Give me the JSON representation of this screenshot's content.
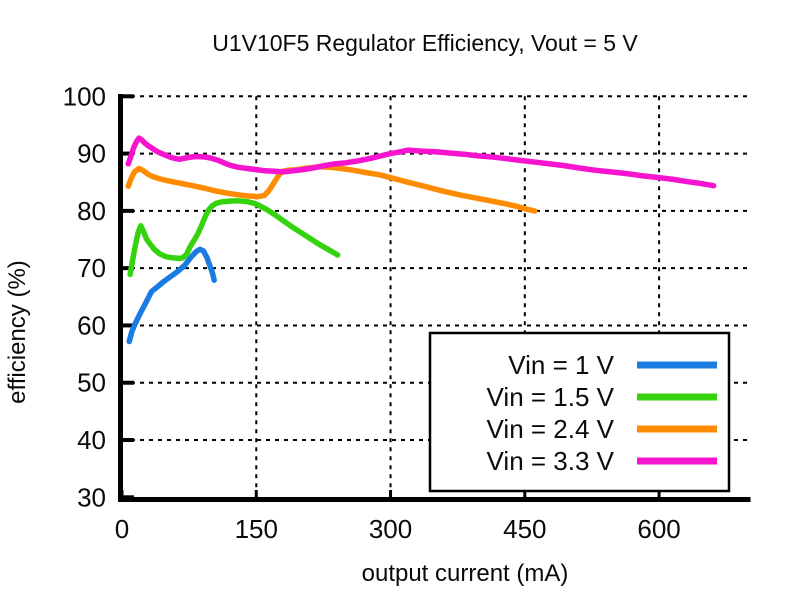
{
  "chart_data": {
    "type": "line",
    "title": "U1V10F5 Regulator Efficiency, Vout = 5 V",
    "xlabel": "output current (mA)",
    "ylabel": "efficiency (%)",
    "xlim": [
      0,
      700
    ],
    "ylim": [
      30,
      100
    ],
    "x_ticks": [
      0,
      150,
      300,
      450,
      600
    ],
    "y_ticks": [
      30,
      40,
      50,
      60,
      70,
      80,
      90,
      100
    ],
    "grid": true,
    "grid_style": "black-dotted",
    "axes_shown": [
      "left",
      "bottom"
    ],
    "legend_position": "inside-bottom-right-box",
    "series": [
      {
        "name": "Vin = 1 V",
        "color": "#1a7ce0",
        "points": [
          [
            8,
            57.2
          ],
          [
            11,
            58.9
          ],
          [
            15,
            60.4
          ],
          [
            20,
            62.0
          ],
          [
            26,
            63.8
          ],
          [
            33,
            65.9
          ],
          [
            40,
            66.8
          ],
          [
            47,
            67.7
          ],
          [
            54,
            68.5
          ],
          [
            62,
            69.4
          ],
          [
            70,
            70.5
          ],
          [
            77,
            71.9
          ],
          [
            83,
            72.9
          ],
          [
            87,
            73.3
          ],
          [
            91,
            73.0
          ],
          [
            95,
            71.8
          ],
          [
            98,
            70.5
          ],
          [
            101,
            69.2
          ],
          [
            103,
            67.9
          ]
        ]
      },
      {
        "name": "Vin = 1.5 V",
        "color": "#35d30e",
        "points": [
          [
            9,
            68.9
          ],
          [
            12,
            71.5
          ],
          [
            15,
            74.0
          ],
          [
            18,
            76.2
          ],
          [
            21,
            77.4
          ],
          [
            24,
            76.4
          ],
          [
            27,
            75.2
          ],
          [
            31,
            74.3
          ],
          [
            36,
            73.3
          ],
          [
            42,
            72.5
          ],
          [
            49,
            72.0
          ],
          [
            56,
            71.8
          ],
          [
            64,
            71.7
          ],
          [
            68,
            71.8
          ],
          [
            72,
            72.4
          ],
          [
            76,
            73.7
          ],
          [
            81,
            75.0
          ],
          [
            85,
            76.1
          ],
          [
            89,
            77.5
          ],
          [
            93,
            79.0
          ],
          [
            97,
            80.2
          ],
          [
            101,
            80.9
          ],
          [
            105,
            81.3
          ],
          [
            112,
            81.6
          ],
          [
            120,
            81.7
          ],
          [
            130,
            81.75
          ],
          [
            140,
            81.6
          ],
          [
            148,
            81.3
          ],
          [
            155,
            80.8
          ],
          [
            162,
            80.2
          ],
          [
            170,
            79.4
          ],
          [
            180,
            78.3
          ],
          [
            190,
            77.2
          ],
          [
            200,
            76.2
          ],
          [
            210,
            75.2
          ],
          [
            221,
            74.1
          ],
          [
            231,
            73.2
          ],
          [
            241,
            72.3
          ]
        ]
      },
      {
        "name": "Vin = 2.4 V",
        "color": "#ff8c00",
        "points": [
          [
            7,
            84.3
          ],
          [
            10,
            85.6
          ],
          [
            14,
            86.8
          ],
          [
            19,
            87.4
          ],
          [
            23,
            87.1
          ],
          [
            28,
            86.5
          ],
          [
            34,
            86.0
          ],
          [
            42,
            85.6
          ],
          [
            50,
            85.3
          ],
          [
            59,
            85.0
          ],
          [
            69,
            84.7
          ],
          [
            79,
            84.4
          ],
          [
            91,
            84.0
          ],
          [
            104,
            83.5
          ],
          [
            117,
            83.1
          ],
          [
            130,
            82.8
          ],
          [
            141,
            82.6
          ],
          [
            152,
            82.5
          ],
          [
            159,
            82.7
          ],
          [
            164,
            83.5
          ],
          [
            169,
            84.7
          ],
          [
            174,
            86.0
          ],
          [
            179,
            86.9
          ],
          [
            186,
            87.1
          ],
          [
            196,
            87.2
          ],
          [
            208,
            87.5
          ],
          [
            220,
            87.7
          ],
          [
            232,
            87.6
          ],
          [
            245,
            87.4
          ],
          [
            258,
            87.1
          ],
          [
            272,
            86.7
          ],
          [
            288,
            86.3
          ],
          [
            305,
            85.6
          ],
          [
            322,
            84.9
          ],
          [
            340,
            84.2
          ],
          [
            360,
            83.4
          ],
          [
            380,
            82.7
          ],
          [
            400,
            82.1
          ],
          [
            420,
            81.5
          ],
          [
            438,
            80.9
          ],
          [
            452,
            80.3
          ],
          [
            461,
            80.0
          ]
        ]
      },
      {
        "name": "Vin = 3.3 V",
        "color": "#f714cf",
        "points": [
          [
            7,
            88.2
          ],
          [
            10,
            89.6
          ],
          [
            13,
            91.0
          ],
          [
            16,
            92.0
          ],
          [
            19,
            92.7
          ],
          [
            22,
            92.4
          ],
          [
            25,
            91.9
          ],
          [
            29,
            91.4
          ],
          [
            34,
            90.9
          ],
          [
            40,
            90.3
          ],
          [
            46,
            89.9
          ],
          [
            52,
            89.5
          ],
          [
            58,
            89.2
          ],
          [
            64,
            89.0
          ],
          [
            70,
            89.2
          ],
          [
            77,
            89.4
          ],
          [
            85,
            89.5
          ],
          [
            93,
            89.4
          ],
          [
            100,
            89.2
          ],
          [
            108,
            88.8
          ],
          [
            115,
            88.3
          ],
          [
            122,
            87.9
          ],
          [
            130,
            87.6
          ],
          [
            140,
            87.4
          ],
          [
            150,
            87.2
          ],
          [
            160,
            87.0
          ],
          [
            170,
            86.9
          ],
          [
            180,
            86.8
          ],
          [
            191,
            87.0
          ],
          [
            202,
            87.2
          ],
          [
            214,
            87.5
          ],
          [
            226,
            87.9
          ],
          [
            238,
            88.2
          ],
          [
            250,
            88.4
          ],
          [
            263,
            88.7
          ],
          [
            276,
            89.1
          ],
          [
            289,
            89.6
          ],
          [
            300,
            90.0
          ],
          [
            310,
            90.3
          ],
          [
            320,
            90.6
          ],
          [
            328,
            90.5
          ],
          [
            338,
            90.4
          ],
          [
            352,
            90.3
          ],
          [
            366,
            90.1
          ],
          [
            382,
            89.9
          ],
          [
            398,
            89.6
          ],
          [
            414,
            89.4
          ],
          [
            430,
            89.1
          ],
          [
            446,
            88.8
          ],
          [
            462,
            88.5
          ],
          [
            478,
            88.2
          ],
          [
            494,
            87.9
          ],
          [
            510,
            87.5
          ],
          [
            528,
            87.1
          ],
          [
            546,
            86.8
          ],
          [
            564,
            86.5
          ],
          [
            582,
            86.1
          ],
          [
            600,
            85.8
          ],
          [
            616,
            85.5
          ],
          [
            632,
            85.1
          ],
          [
            646,
            84.8
          ],
          [
            661,
            84.4
          ]
        ]
      }
    ]
  },
  "legend": {
    "entries": [
      "Vin = 1 V",
      "Vin = 1.5 V",
      "Vin = 2.4 V",
      "Vin = 3.3 V"
    ],
    "border_color": "#000000",
    "background": "#ffffff"
  },
  "colors": {
    "axis": "#000000",
    "grid": "#000000",
    "text": "#0a0a0a",
    "background": "#ffffff"
  }
}
